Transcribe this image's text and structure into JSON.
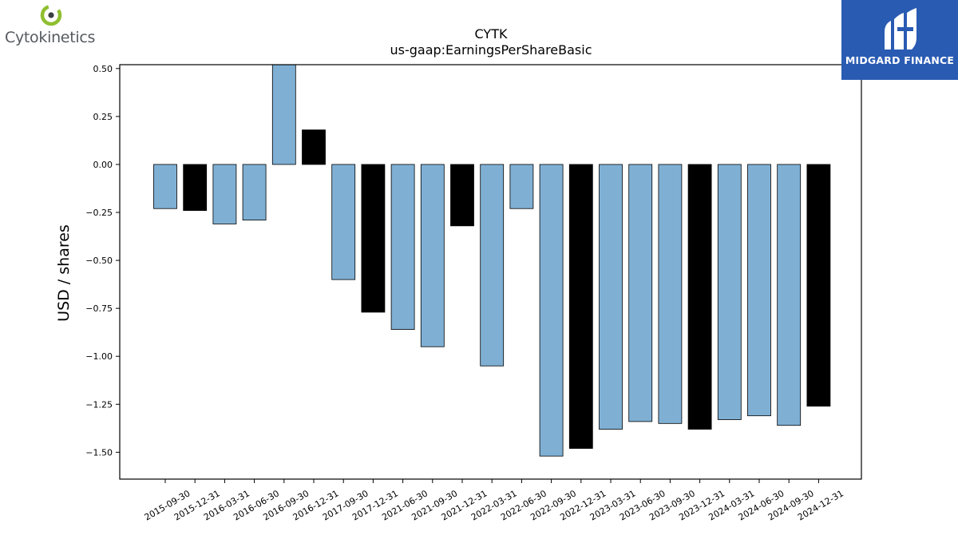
{
  "header": {
    "company_name": "Cytokinetics",
    "brand_name": "MIDGARD FINANCE",
    "company_logo_icon": "cytokinetics-logo-icon",
    "brand_logo_icon": "midgard-finance-logo-icon"
  },
  "chart_data": {
    "type": "bar",
    "title": "CYTK",
    "subtitle": "us-gaap:EarningsPerShareBasic",
    "xlabel": "",
    "ylabel": "USD / shares",
    "ylim": [
      -1.64,
      0.52
    ],
    "yticks": [
      "0.50",
      "0.25",
      "0.00",
      "−0.25",
      "−0.50",
      "−0.75",
      "−1.00",
      "−1.25",
      "−1.50"
    ],
    "ytick_values": [
      0.5,
      0.25,
      0.0,
      -0.25,
      -0.5,
      -0.75,
      -1.0,
      -1.25,
      -1.5
    ],
    "grid": false,
    "colors": {
      "quarter": "#7fb0d4",
      "annual": "#000000",
      "edge": "#000000"
    },
    "categories": [
      "2015-09-30",
      "2015-12-31",
      "2016-03-31",
      "2016-06-30",
      "2016-09-30",
      "2016-12-31",
      "2017-09-30",
      "2017-12-31",
      "2021-06-30",
      "2021-09-30",
      "2021-12-31",
      "2022-03-31",
      "2022-06-30",
      "2022-09-30",
      "2022-12-31",
      "2023-03-31",
      "2023-06-30",
      "2023-09-30",
      "2023-12-31",
      "2024-03-31",
      "2024-06-30",
      "2024-09-30",
      "2024-12-31"
    ],
    "values": [
      -0.23,
      -0.24,
      -0.31,
      -0.29,
      0.52,
      0.18,
      -0.6,
      -0.77,
      -0.86,
      -0.95,
      -0.32,
      -1.05,
      -0.23,
      -1.52,
      -1.48,
      -1.38,
      -1.34,
      -1.35,
      -1.38,
      -1.33,
      -1.31,
      -1.36,
      -1.26
    ],
    "bar_kind": [
      "quarter",
      "annual",
      "quarter",
      "quarter",
      "quarter",
      "annual",
      "quarter",
      "annual",
      "quarter",
      "quarter",
      "annual",
      "quarter",
      "quarter",
      "quarter",
      "annual",
      "quarter",
      "quarter",
      "quarter",
      "annual",
      "quarter",
      "quarter",
      "quarter",
      "annual"
    ]
  }
}
